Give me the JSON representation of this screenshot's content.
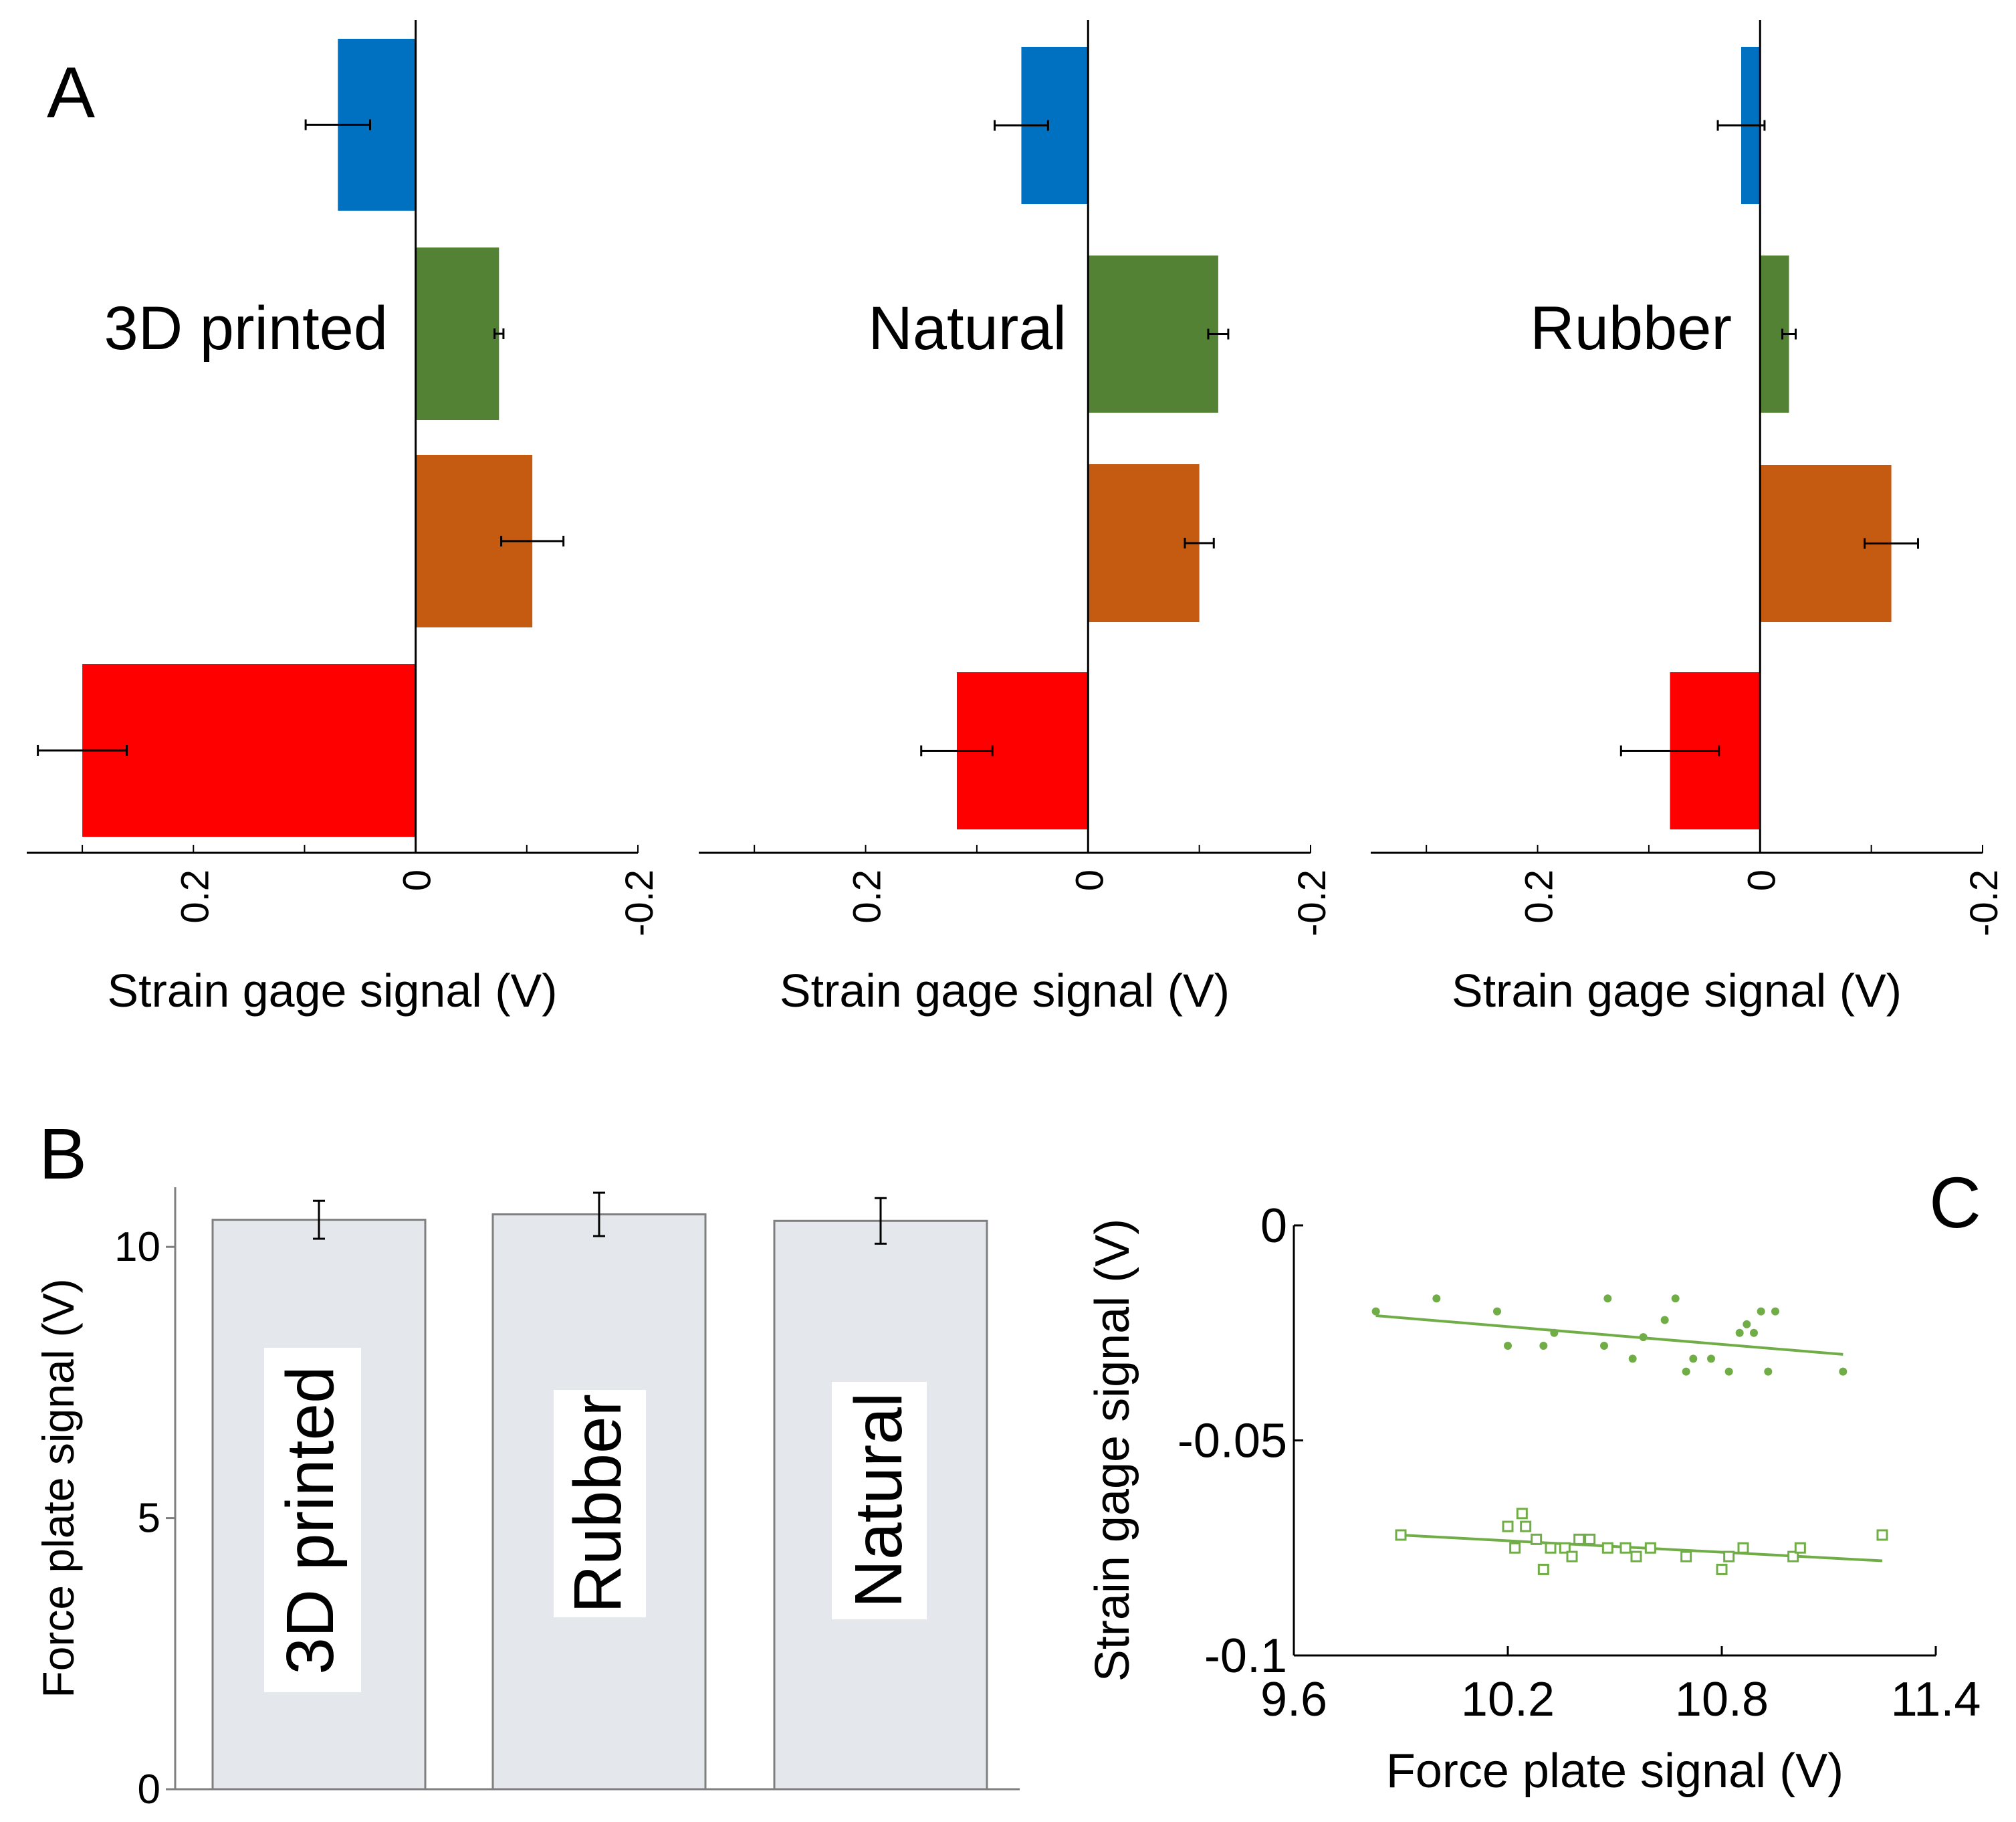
{
  "figure": {
    "panel_A": "A",
    "panel_B": "B",
    "panel_C": "C"
  },
  "chart_data": [
    {
      "type": "bar",
      "orientation": "horizontal",
      "title": "3D printed",
      "xlabel": "Strain gage signal (V)",
      "xlim": [
        0.35,
        -0.2
      ],
      "ticks": [
        0.2,
        0,
        -0.2
      ],
      "tick_labels": [
        "0.2",
        "0",
        "-0.2"
      ],
      "colors": [
        "#0070C0",
        "#548235",
        "#C55A11",
        "#FF0000"
      ],
      "values": [
        0.07,
        -0.075,
        -0.105,
        0.3
      ],
      "errors": [
        0.029,
        0.004,
        0.028,
        0.04
      ]
    },
    {
      "type": "bar",
      "orientation": "horizontal",
      "title": "Natural",
      "xlabel": "Strain gage signal (V)",
      "xlim": [
        0.35,
        -0.2
      ],
      "ticks": [
        0.2,
        0,
        -0.2
      ],
      "tick_labels": [
        "0.2",
        "0",
        "-0.2"
      ],
      "colors": [
        "#0070C0",
        "#548235",
        "#C55A11",
        "#FF0000"
      ],
      "values": [
        0.06,
        -0.117,
        -0.1,
        0.118
      ],
      "errors": [
        0.024,
        0.009,
        0.013,
        0.032
      ]
    },
    {
      "type": "bar",
      "orientation": "horizontal",
      "title": "Rubber",
      "xlabel": "Strain gage signal (V)",
      "xlim": [
        0.35,
        -0.2
      ],
      "ticks": [
        0.2,
        0,
        -0.2
      ],
      "tick_labels": [
        "0.2",
        "0",
        "-0.2"
      ],
      "colors": [
        "#0070C0",
        "#548235",
        "#C55A11",
        "#FF0000"
      ],
      "values": [
        0.017,
        -0.026,
        -0.118,
        0.081
      ],
      "errors": [
        0.021,
        0.006,
        0.024,
        0.044
      ]
    },
    {
      "type": "bar",
      "title": "",
      "xlabel": "",
      "ylabel": "Force plate signal (V)",
      "categories": [
        "3D printed",
        "Rubber",
        "Natural"
      ],
      "values": [
        10.5,
        10.6,
        10.48
      ],
      "errors": [
        0.35,
        0.4,
        0.42
      ],
      "ylim": [
        0,
        11.1
      ],
      "yticks": [
        0,
        5,
        10
      ],
      "ytick_labels": [
        "0",
        "5",
        "10"
      ],
      "bar_color": "#E4E7EC"
    },
    {
      "type": "scatter",
      "xlabel": "Force plate signal (V)",
      "ylabel": "Strain gage signal (V)",
      "xlim": [
        9.6,
        11.4
      ],
      "ylim": [
        -0.1,
        0
      ],
      "xticks": [
        9.6,
        10.2,
        10.8,
        11.4
      ],
      "xtick_labels": [
        "9.6",
        "10.2",
        "10.8",
        "11.4"
      ],
      "yticks": [
        0,
        -0.05,
        -0.1
      ],
      "ytick_labels": [
        "0",
        "-0.05",
        "-0.1"
      ],
      "color": "#70AD47",
      "series": [
        {
          "name": "filled",
          "marker": "dot",
          "x": [
            9.83,
            10.0,
            10.17,
            10.2,
            10.3,
            10.33,
            10.47,
            10.48,
            10.55,
            10.58,
            10.64,
            10.67,
            10.7,
            10.72,
            10.77,
            10.82,
            10.85,
            10.87,
            10.89,
            10.91,
            10.93,
            10.95,
            11.14
          ],
          "y": [
            -0.02,
            -0.017,
            -0.02,
            -0.028,
            -0.028,
            -0.025,
            -0.028,
            -0.017,
            -0.031,
            -0.026,
            -0.022,
            -0.017,
            -0.034,
            -0.031,
            -0.031,
            -0.034,
            -0.025,
            -0.023,
            -0.025,
            -0.02,
            -0.034,
            -0.02,
            -0.034
          ],
          "trend": [
            [
              9.83,
              -0.021
            ],
            [
              11.14,
              -0.03
            ]
          ]
        },
        {
          "name": "open",
          "marker": "square",
          "x": [
            9.9,
            10.2,
            10.22,
            10.24,
            10.25,
            10.28,
            10.3,
            10.32,
            10.36,
            10.38,
            10.4,
            10.43,
            10.48,
            10.53,
            10.56,
            10.6,
            10.7,
            10.8,
            10.82,
            10.86,
            11.0,
            11.02,
            11.25
          ],
          "y": [
            -0.072,
            -0.07,
            -0.075,
            -0.067,
            -0.07,
            -0.073,
            -0.08,
            -0.075,
            -0.075,
            -0.077,
            -0.073,
            -0.073,
            -0.075,
            -0.075,
            -0.077,
            -0.075,
            -0.077,
            -0.08,
            -0.077,
            -0.075,
            -0.077,
            -0.075,
            -0.072
          ],
          "trend": [
            [
              9.9,
              -0.072
            ],
            [
              11.25,
              -0.078
            ]
          ]
        }
      ]
    }
  ]
}
